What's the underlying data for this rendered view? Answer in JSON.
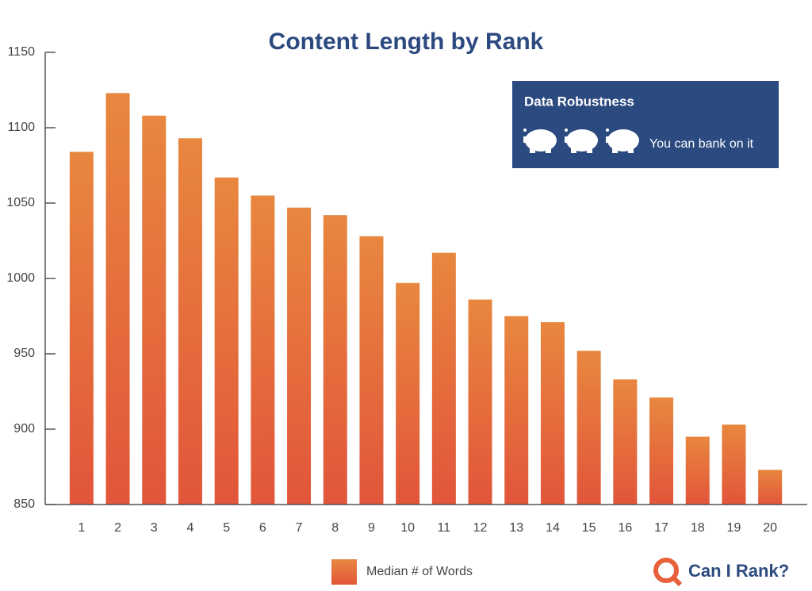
{
  "chart_data": {
    "type": "bar",
    "title": "Content Length by Rank",
    "categories": [
      "1",
      "2",
      "3",
      "4",
      "5",
      "6",
      "7",
      "8",
      "9",
      "10",
      "11",
      "12",
      "13",
      "14",
      "15",
      "16",
      "17",
      "18",
      "19",
      "20"
    ],
    "series": [
      {
        "name": "Median # of Words",
        "color": "#e2553a",
        "values": [
          1084,
          1123,
          1108,
          1093,
          1067,
          1055,
          1047,
          1042,
          1028,
          997,
          1017,
          986,
          975,
          971,
          952,
          933,
          921,
          895,
          903,
          873
        ]
      }
    ],
    "ylim": [
      850,
      1150
    ],
    "yticks": [
      850,
      900,
      950,
      1000,
      1050,
      1100,
      1150
    ],
    "grid": false,
    "robustness_box": {
      "title": "Data Robustness",
      "label": "You can bank on it"
    },
    "logo": "Can I Rank?"
  }
}
